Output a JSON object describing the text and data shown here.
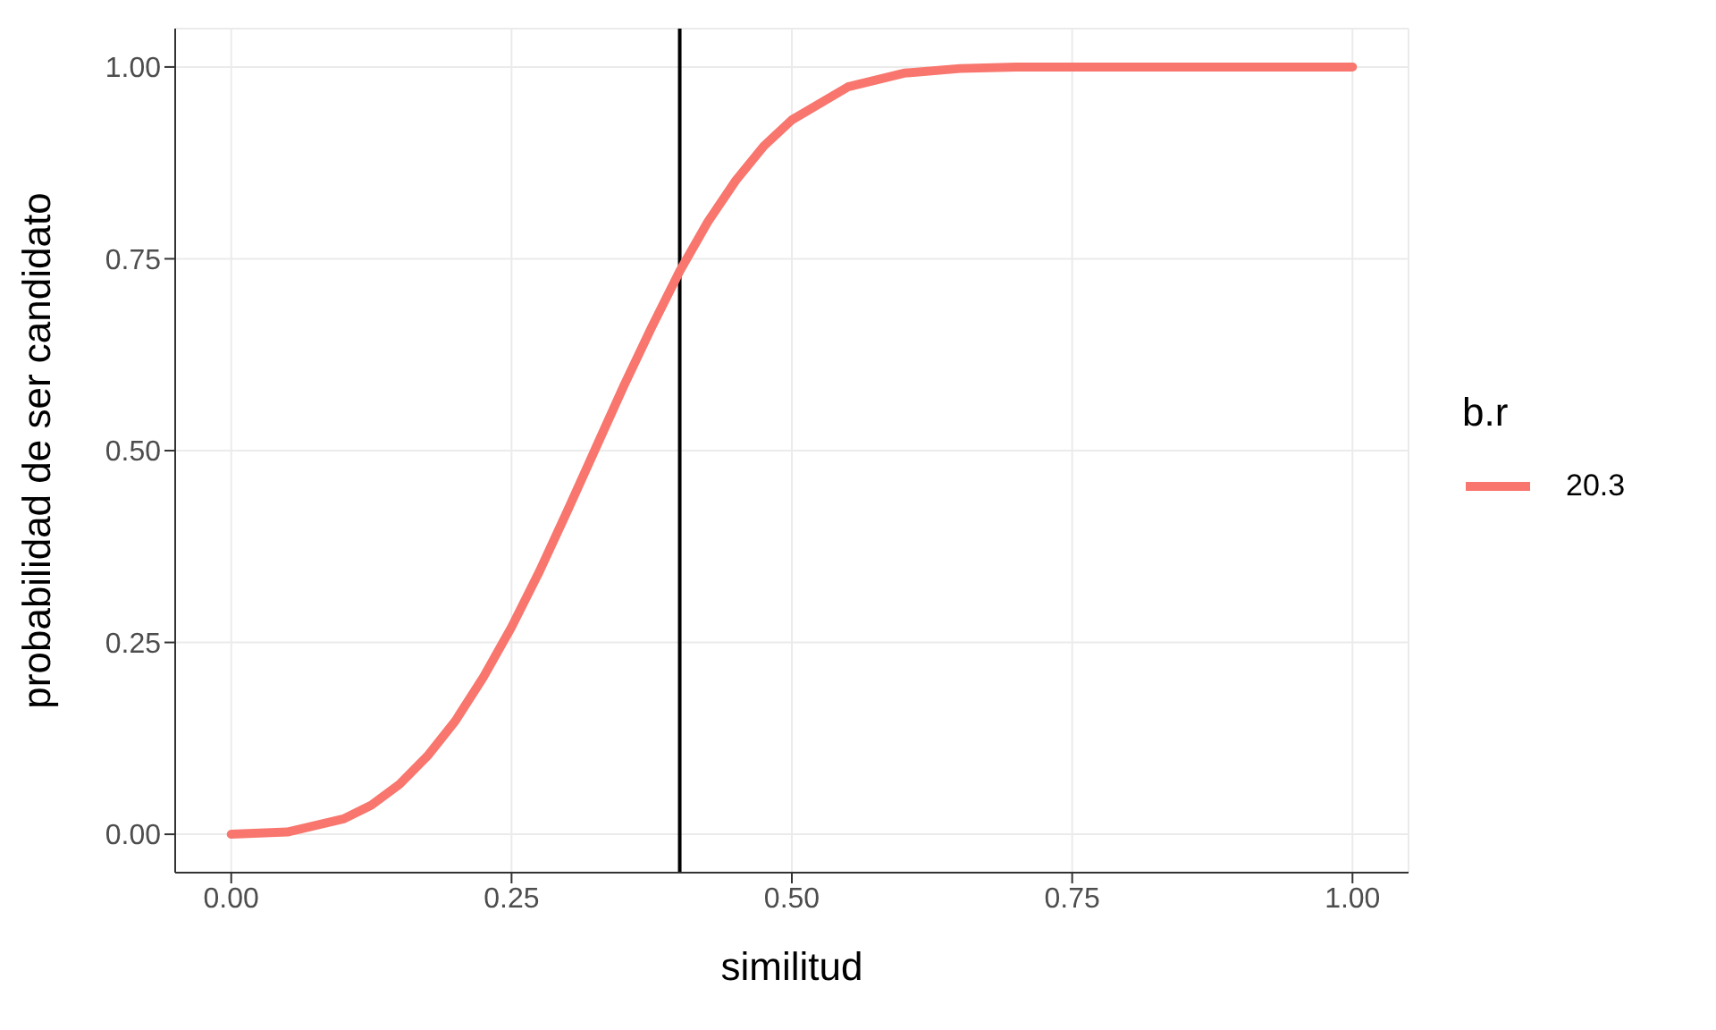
{
  "chart_data": {
    "type": "line",
    "xlabel": "similitud",
    "ylabel": "probabilidad de ser candidato",
    "legend_title": "b.r",
    "x": [
      0,
      0.05,
      0.1,
      0.125,
      0.15,
      0.175,
      0.2,
      0.225,
      0.25,
      0.275,
      0.3,
      0.325,
      0.35,
      0.375,
      0.4,
      0.425,
      0.45,
      0.475,
      0.5,
      0.55,
      0.6,
      0.65,
      0.7,
      0.8,
      0.9,
      1
    ],
    "series": [
      {
        "name": "20.3",
        "color": "#f8766d",
        "values": [
          0,
          0.003,
          0.02,
          0.038,
          0.065,
          0.102,
          0.148,
          0.205,
          0.27,
          0.343,
          0.422,
          0.503,
          0.584,
          0.661,
          0.734,
          0.798,
          0.852,
          0.897,
          0.931,
          0.974,
          0.992,
          0.998,
          1,
          1,
          1,
          1
        ]
      }
    ],
    "xlim": [
      -0.05,
      1.05
    ],
    "ylim": [
      -0.05,
      1.05
    ],
    "xticks": [
      {
        "value": 0,
        "label": "0.00"
      },
      {
        "value": 0.25,
        "label": "0.25"
      },
      {
        "value": 0.5,
        "label": "0.50"
      },
      {
        "value": 0.75,
        "label": "0.75"
      },
      {
        "value": 1,
        "label": "1.00"
      }
    ],
    "yticks": [
      {
        "value": 0,
        "label": "0.00"
      },
      {
        "value": 0.25,
        "label": "0.25"
      },
      {
        "value": 0.5,
        "label": "0.50"
      },
      {
        "value": 0.75,
        "label": "0.75"
      },
      {
        "value": 1,
        "label": "1.00"
      }
    ],
    "ref_lines": [
      {
        "axis": "x",
        "value": 0.4,
        "color": "#000000"
      }
    ],
    "grid": true,
    "legend": "right",
    "marker": "none",
    "line_style": "solid"
  }
}
